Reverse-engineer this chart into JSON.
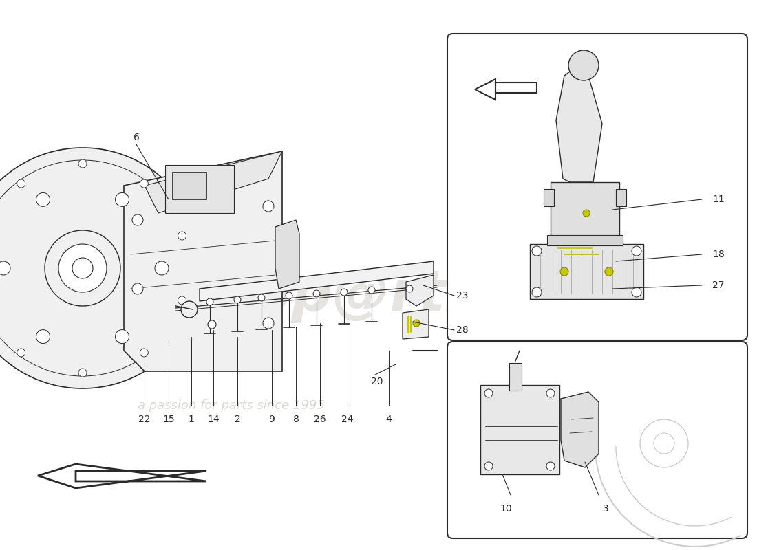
{
  "bg_color": "#ffffff",
  "lc": "#2a2a2a",
  "plc": "#c8c800",
  "wm1_color": "#c8c4bc",
  "wm2_color": "#c0bcb0",
  "fig_w": 11.0,
  "fig_h": 8.0,
  "dpi": 100,
  "bottom_labels": [
    "22",
    "15",
    "1",
    "14",
    "2",
    "9",
    "8",
    "26",
    "24",
    "4"
  ],
  "label_fontsize": 10,
  "wm1_fontsize": 60,
  "wm2_fontsize": 13
}
